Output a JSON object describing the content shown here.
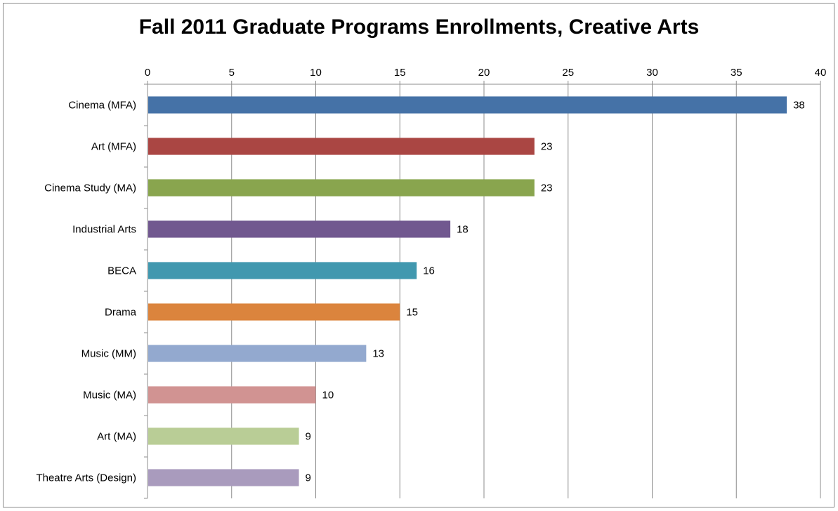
{
  "chart_data": {
    "type": "bar",
    "orientation": "horizontal",
    "title": "Fall 2011 Graduate Programs Enrollments, Creative Arts",
    "xlabel": "",
    "ylabel": "",
    "x_axis_position": "top",
    "xlim": [
      0,
      40
    ],
    "x_ticks": [
      0,
      5,
      10,
      15,
      20,
      25,
      30,
      35,
      40
    ],
    "x_tick_labels": [
      "0",
      "5",
      "10",
      "15",
      "20",
      "25",
      "30",
      "35",
      "40"
    ],
    "grid": true,
    "legend": "none",
    "categories": [
      "Cinema (MFA)",
      "Art (MFA)",
      "Cinema Study (MA)",
      "Industrial Arts",
      "BECA",
      "Drama",
      "Music (MM)",
      "Music (MA)",
      "Art (MA)",
      "Theatre Arts (Design)"
    ],
    "values": [
      38,
      23,
      23,
      18,
      16,
      15,
      13,
      10,
      9,
      9
    ],
    "data_labels": [
      "38",
      "23",
      "23",
      "18",
      "16",
      "15",
      "13",
      "10",
      "9",
      "9"
    ],
    "colors": [
      "#4572a7",
      "#aa4643",
      "#89a54e",
      "#71588f",
      "#4198af",
      "#db843d",
      "#93a9cf",
      "#d19392",
      "#b9cd96",
      "#a99bbd"
    ]
  }
}
